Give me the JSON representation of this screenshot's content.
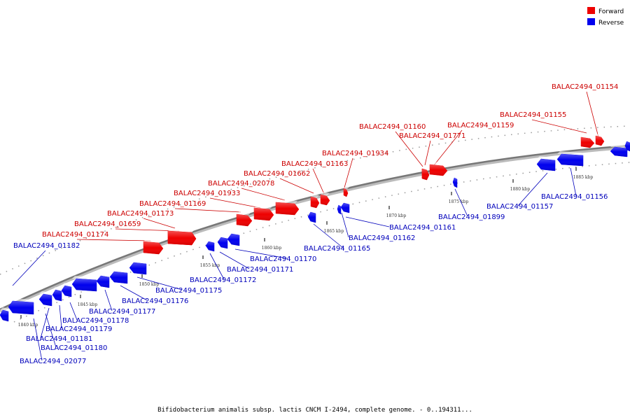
{
  "caption": "Bifidobacterium animalis subsp. lactis CNCM I-2494, complete genome. - 0..194311...",
  "legend": [
    {
      "label": "Forward",
      "color": "#ee0000"
    },
    {
      "label": "Reverse",
      "color": "#0000ee"
    }
  ],
  "colors": {
    "forward": "#ee0000",
    "reverse": "#0000ee",
    "backbone": "#888888"
  },
  "ticks": [
    "1840 kbp",
    "1845 kbp",
    "1850 kbp",
    "1855 kbp",
    "1860 kbp",
    "1865 kbp",
    "1870 kbp",
    "1875 kbp",
    "1880 kbp",
    "1885 kbp"
  ],
  "forward_genes": [
    "BALAC2494_01154",
    "BALAC2494_01155",
    "BALAC2494_01159",
    "BALAC2494_01160",
    "BALAC2494_01771",
    "BALAC2494_01934",
    "BALAC2494_01163",
    "BALAC2494_01662",
    "BALAC2494_02078",
    "BALAC2494_01933",
    "BALAC2494_01169",
    "BALAC2494_01173",
    "BALAC2494_01659",
    "BALAC2494_01174"
  ],
  "reverse_genes": [
    "BALAC2494_01182",
    "BALAC2494_01156",
    "BALAC2494_01157",
    "BALAC2494_01899",
    "BALAC2494_01161",
    "BALAC2494_01162",
    "BALAC2494_01165",
    "BALAC2494_01170",
    "BALAC2494_01171",
    "BALAC2494_01172",
    "BALAC2494_01175",
    "BALAC2494_01176",
    "BALAC2494_01177",
    "BALAC2494_01178",
    "BALAC2494_01179",
    "BALAC2494_01181",
    "BALAC2494_01180",
    "BALAC2494_02077"
  ]
}
